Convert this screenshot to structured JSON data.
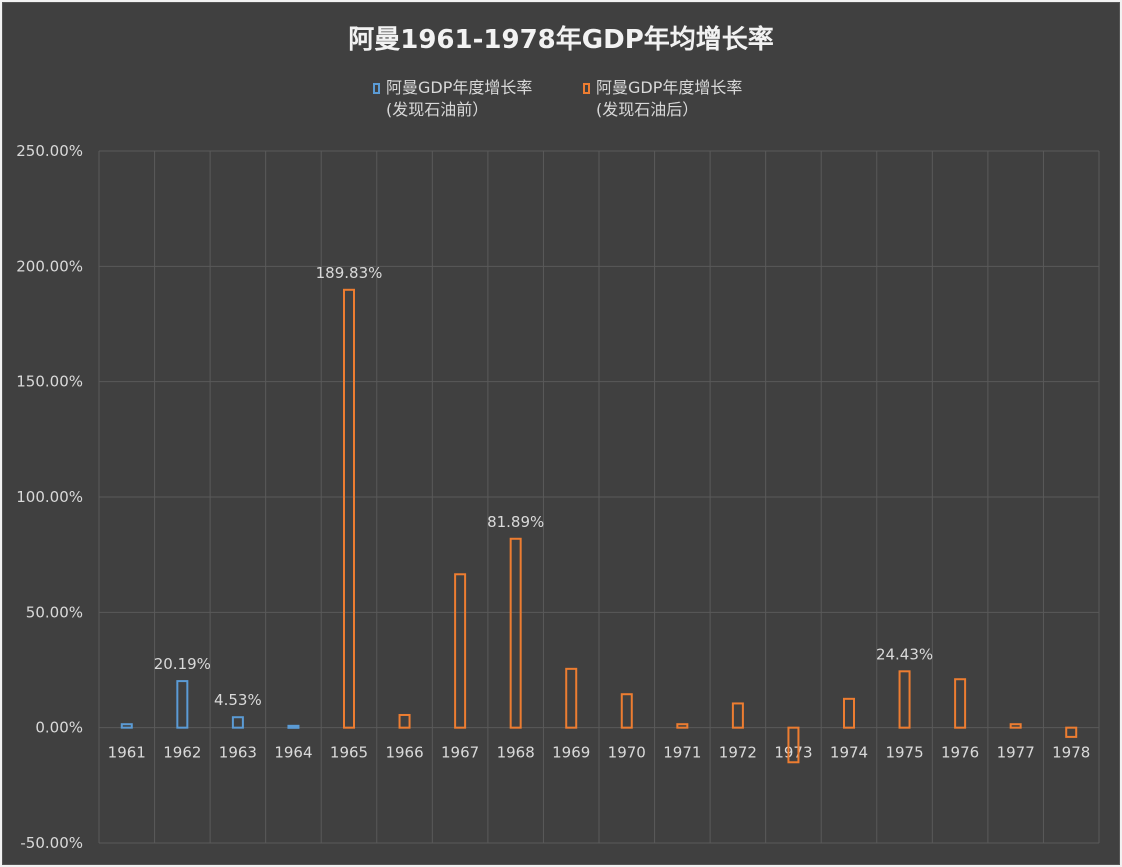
{
  "chart_data": {
    "type": "bar",
    "title": "阿曼1961-1978年GDP年均增长率",
    "xlabel": "",
    "ylabel": "",
    "ylim": [
      -50,
      250
    ],
    "yticks": [
      "250.00%",
      "200.00%",
      "150.00%",
      "100.00%",
      "50.00%",
      "0.00%",
      "-50.00%"
    ],
    "ytick_values": [
      250,
      200,
      150,
      100,
      50,
      0,
      -50
    ],
    "categories": [
      "1961",
      "1962",
      "1963",
      "1964",
      "1965",
      "1966",
      "1967",
      "1968",
      "1969",
      "1970",
      "1971",
      "1972",
      "1973",
      "1974",
      "1975",
      "1976",
      "1977",
      "1978"
    ],
    "legend_position": "top",
    "grid": true,
    "series": [
      {
        "name": "阿曼GDP年度增长率\n(发现石油前）",
        "color": "#5b9bd5",
        "values": [
          1.5,
          20.19,
          4.53,
          0.8,
          null,
          null,
          null,
          null,
          null,
          null,
          null,
          null,
          null,
          null,
          null,
          null,
          null,
          null
        ]
      },
      {
        "name": "阿曼GDP年度增长率\n(发现石油后）",
        "color": "#ed7d31",
        "values": [
          null,
          null,
          null,
          null,
          189.83,
          5.5,
          66.5,
          81.89,
          25.5,
          14.5,
          1.5,
          10.5,
          -15.0,
          12.5,
          24.43,
          21.0,
          1.5,
          -4.0
        ]
      }
    ],
    "data_labels": [
      {
        "series": 0,
        "index": 1,
        "text": "20.19%"
      },
      {
        "series": 0,
        "index": 2,
        "text": "4.53%"
      },
      {
        "series": 1,
        "index": 4,
        "text": "189.83%"
      },
      {
        "series": 1,
        "index": 7,
        "text": "81.89%"
      },
      {
        "series": 1,
        "index": 14,
        "text": "24.43%"
      }
    ]
  }
}
